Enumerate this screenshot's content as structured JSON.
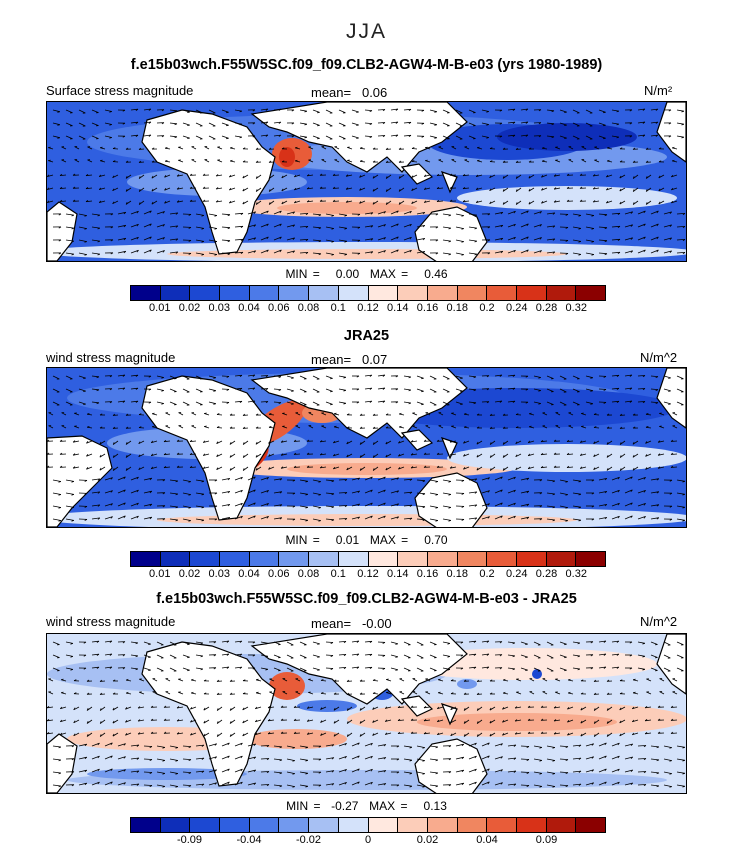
{
  "season": "JJA",
  "panels": [
    {
      "title": "f.e15b03wch.F55W5SC.f09_f09.CLB2-AGW4-M-B-e03 (yrs 1980-1989)",
      "left_label": "Surface stress magnitude",
      "mean_label": "mean=",
      "mean_value": "0.06",
      "units": "N/m²",
      "min_label": "MIN =",
      "min_value": "0.00",
      "max_label": "MAX =",
      "max_value": "0.46"
    },
    {
      "title": "JRA25",
      "left_label": "wind stress magnitude",
      "mean_label": "mean=",
      "mean_value": "0.07",
      "units": "N/m^2",
      "min_label": "MIN =",
      "min_value": "0.01",
      "max_label": "MAX =",
      "max_value": "0.70"
    },
    {
      "title": "f.e15b03wch.F55W5SC.f09_f09.CLB2-AGW4-M-B-e03 - JRA25",
      "left_label": "wind stress magnitude",
      "mean_label": "mean=",
      "mean_value": "-0.00",
      "units": "N/m^2",
      "min_label": "MIN =",
      "min_value": "-0.27",
      "max_label": "MAX =",
      "max_value": "0.13"
    }
  ],
  "colorbar_abs": {
    "colors": [
      "#00008b",
      "#0e2eb9",
      "#1c48d2",
      "#2f5fe0",
      "#4c7ae8",
      "#7299ee",
      "#a7c0f3",
      "#d4e2fa",
      "#ffe8df",
      "#fccdb9",
      "#f8ab8e",
      "#f08660",
      "#e85c39",
      "#d83218",
      "#b01a0c",
      "#8b0000"
    ],
    "tick_labels": [
      "0.01",
      "0.02",
      "0.03",
      "0.04",
      "0.06",
      "0.08",
      "0.1",
      "0.12",
      "0.14",
      "0.16",
      "0.18",
      "0.2",
      "0.24",
      "0.28",
      "0.32"
    ]
  },
  "colorbar_diff": {
    "colors": [
      "#00008b",
      "#0e2eb9",
      "#1c48d2",
      "#2f5fe0",
      "#4c7ae8",
      "#7299ee",
      "#a7c0f3",
      "#d4e2fa",
      "#ffe8df",
      "#fccdb9",
      "#f8ab8e",
      "#f08660",
      "#e85c39",
      "#d83218",
      "#b01a0c",
      "#8b0000"
    ],
    "tick_labels": [
      "-0.09",
      "-0.04",
      "-0.02",
      "0",
      "0.02",
      "0.04",
      "0.09"
    ]
  }
}
